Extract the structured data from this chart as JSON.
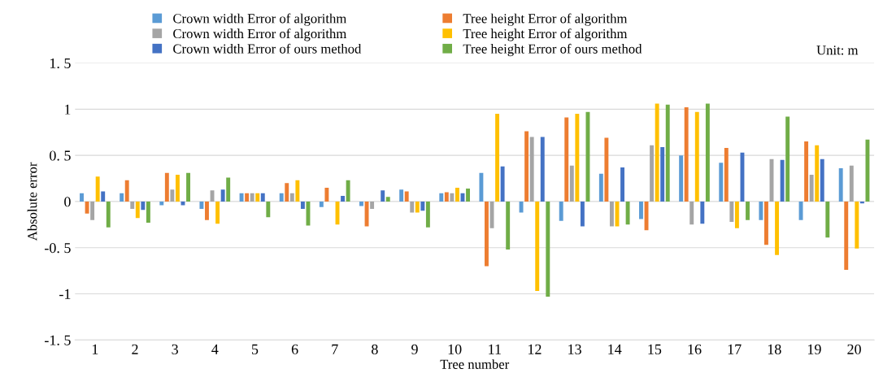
{
  "chart_data": {
    "type": "bar",
    "xlabel": "Tree number",
    "ylabel": "Absolute error",
    "categories": [
      "1",
      "2",
      "3",
      "4",
      "5",
      "6",
      "7",
      "8",
      "9",
      "10",
      "11",
      "12",
      "13",
      "14",
      "15",
      "16",
      "17",
      "18",
      "19",
      "20"
    ],
    "series": [
      {
        "name": "Crown width Error of algorithm",
        "color": "#5b9bd5",
        "values": [
          0.09,
          0.09,
          -0.04,
          -0.08,
          0.09,
          0.09,
          -0.06,
          -0.05,
          0.13,
          0.09,
          0.31,
          -0.12,
          -0.21,
          0.3,
          -0.19,
          0.5,
          0.42,
          -0.2,
          -0.2,
          0.36
        ]
      },
      {
        "name": "Tree height Error of algorithm",
        "color": "#ed7d31",
        "values": [
          -0.13,
          0.23,
          0.31,
          -0.2,
          0.09,
          0.2,
          0.15,
          -0.27,
          0.11,
          0.1,
          -0.7,
          0.76,
          0.91,
          0.69,
          -0.31,
          1.02,
          0.58,
          -0.47,
          0.65,
          -0.74
        ]
      },
      {
        "name": "Crown width Error of algorithm",
        "color": "#a5a5a5",
        "values": [
          -0.2,
          -0.08,
          0.13,
          0.12,
          0.09,
          0.09,
          0,
          -0.08,
          -0.12,
          0.09,
          -0.29,
          0.7,
          0.39,
          -0.27,
          0.61,
          -0.25,
          -0.22,
          0.46,
          0.29,
          0.39
        ]
      },
      {
        "name": "Tree height Error of algorithm",
        "color": "#ffc000",
        "values": [
          0.27,
          -0.18,
          0.29,
          -0.24,
          0.09,
          0.23,
          -0.25,
          0,
          -0.12,
          0.15,
          0.95,
          -0.97,
          0.95,
          -0.27,
          1.06,
          0.97,
          -0.29,
          -0.58,
          0.61,
          -0.51
        ]
      },
      {
        "name": "Crown width Error of ours method",
        "color": "#4472c4",
        "values": [
          0.11,
          -0.09,
          -0.04,
          0.13,
          0.09,
          -0.08,
          0.06,
          0.12,
          -0.1,
          0.09,
          0.38,
          0.7,
          -0.27,
          0.37,
          0.59,
          -0.24,
          0.53,
          0.45,
          0.46,
          -0.02
        ]
      },
      {
        "name": "Tree height Error of ours method",
        "color": "#70ad47",
        "values": [
          -0.28,
          -0.23,
          0.31,
          0.26,
          -0.17,
          -0.26,
          0.23,
          0.05,
          -0.28,
          0.14,
          -0.52,
          -1.03,
          0.97,
          -0.25,
          1.05,
          1.06,
          -0.2,
          0.92,
          -0.39,
          0.67
        ]
      }
    ],
    "ylim": [
      -1.5,
      1.5
    ],
    "yticks": [
      {
        "value": -1.5,
        "label": "-1. 5"
      },
      -1,
      {
        "value": -0.5,
        "label": "-0. 5"
      },
      0,
      {
        "value": 0.5,
        "label": "0. 5"
      },
      1,
      {
        "value": 1.5,
        "label": "1. 5"
      }
    ],
    "grid": "y",
    "legend": "top left",
    "annotations": [
      "Unit: m"
    ]
  }
}
